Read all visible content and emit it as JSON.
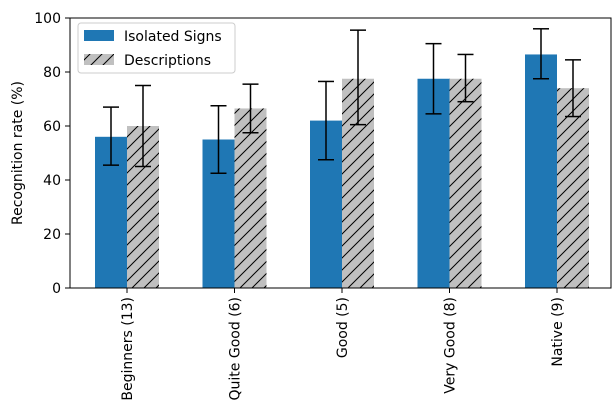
{
  "chart_data": {
    "type": "bar",
    "categories": [
      "Beginners (13)",
      "Quite Good (6)",
      "Good (5)",
      "Very Good (8)",
      "Native (9)"
    ],
    "series": [
      {
        "name": "Isolated Signs",
        "color": "#1f77b4",
        "pattern": "solid",
        "values": [
          56,
          55,
          62,
          77.5,
          86.5
        ],
        "error_low": [
          45.5,
          42.5,
          47.5,
          64.5,
          77.5
        ],
        "error_high": [
          67,
          67.5,
          76.5,
          90.5,
          96
        ]
      },
      {
        "name": "Descriptions",
        "color": "#c0c0c0",
        "pattern": "hatch",
        "values": [
          60,
          66.5,
          77.5,
          77.5,
          74
        ],
        "error_low": [
          45,
          57.5,
          60.5,
          69,
          63.5
        ],
        "error_high": [
          75,
          75.5,
          95.5,
          86.5,
          84.5
        ]
      }
    ],
    "ylabel": "Recognition rate (%)",
    "xlabel": "",
    "ylim": [
      0,
      100
    ],
    "yticks": [
      0,
      20,
      40,
      60,
      80,
      100
    ],
    "grid": false,
    "legend_position": "top-left"
  }
}
